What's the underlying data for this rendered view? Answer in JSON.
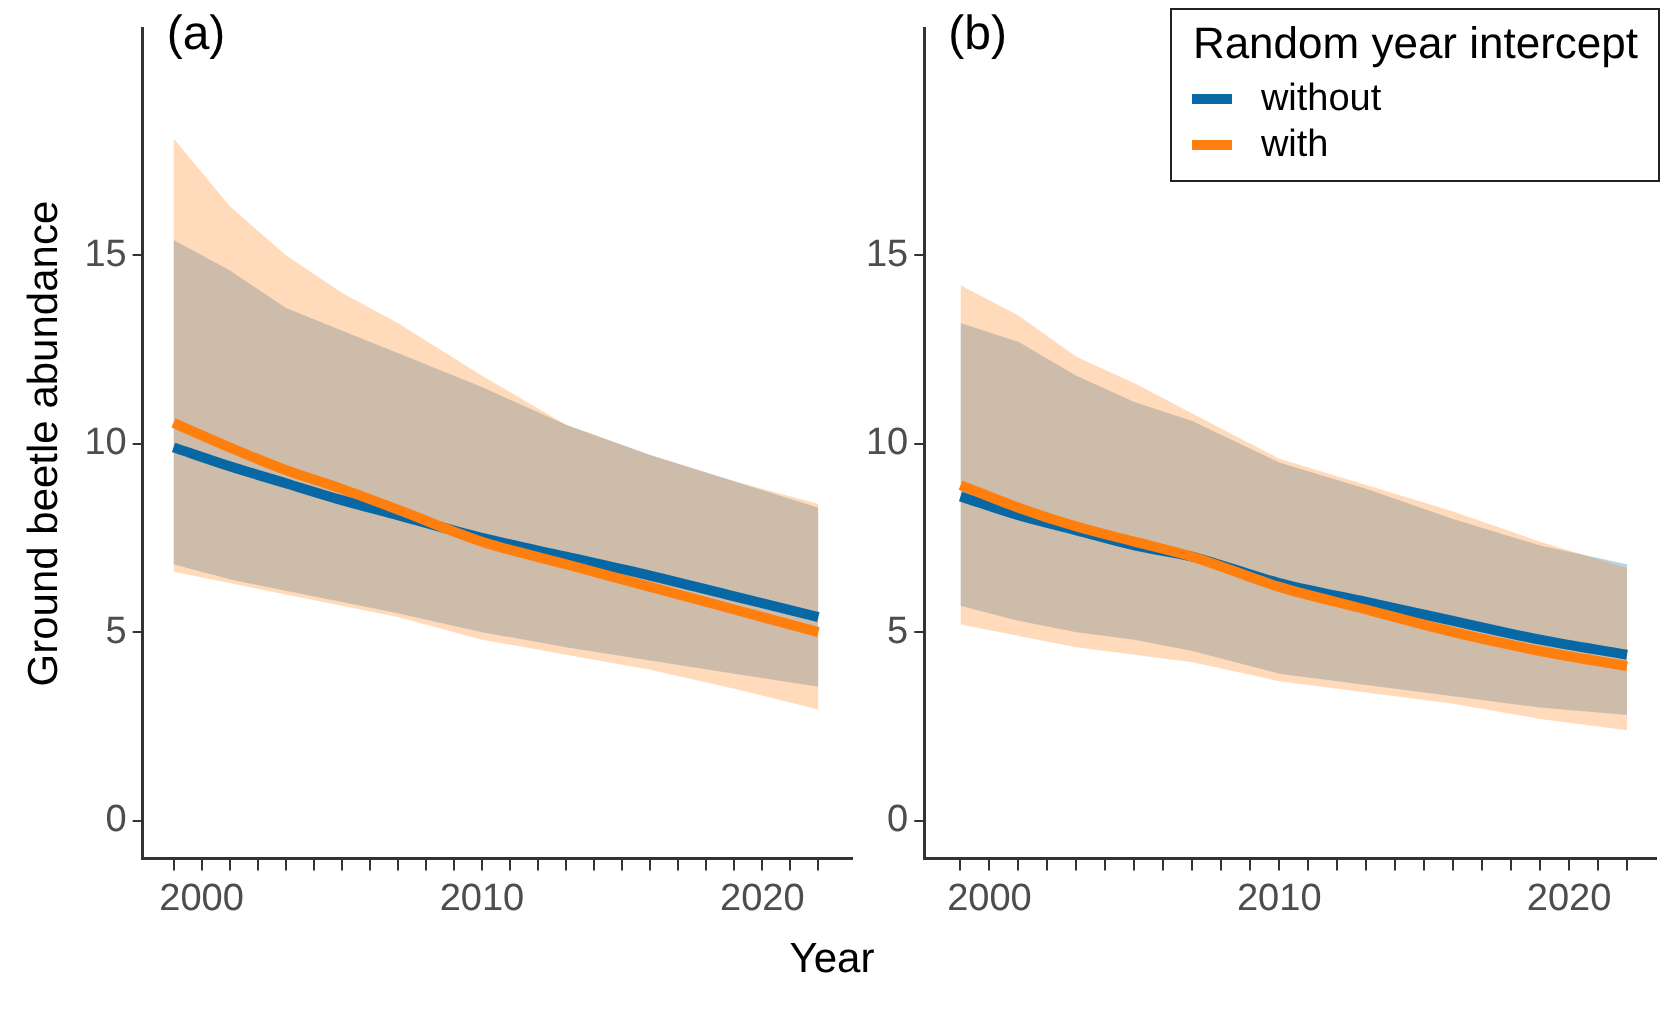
{
  "chart_data": [
    {
      "type": "line",
      "title": "(a)",
      "xlabel": "Year",
      "ylabel": "Ground beetle abundance",
      "xlim": [
        1997.9,
        2023.2
      ],
      "ylim": [
        -1,
        21
      ],
      "yticks": [
        0,
        5,
        10,
        15
      ],
      "xticks": [
        {
          "value": 1999,
          "label": null
        },
        2000,
        {
          "value": 2001,
          "label": null
        },
        {
          "value": 2002,
          "label": null
        },
        {
          "value": 2003,
          "label": null
        },
        {
          "value": 2004,
          "label": null
        },
        {
          "value": 2005,
          "label": null
        },
        {
          "value": 2006,
          "label": null
        },
        {
          "value": 2007,
          "label": null
        },
        {
          "value": 2008,
          "label": null
        },
        {
          "value": 2009,
          "label": null
        },
        2010,
        {
          "value": 2011,
          "label": null
        },
        {
          "value": 2012,
          "label": null
        },
        {
          "value": 2013,
          "label": null
        },
        {
          "value": 2014,
          "label": null
        },
        {
          "value": 2015,
          "label": null
        },
        {
          "value": 2016,
          "label": null
        },
        {
          "value": 2017,
          "label": null
        },
        {
          "value": 2018,
          "label": null
        },
        {
          "value": 2019,
          "label": null
        },
        2020,
        {
          "value": 2021,
          "label": null
        },
        {
          "value": 2022,
          "label": null
        }
      ],
      "x": [
        1999,
        2001,
        2003,
        2005,
        2007,
        2010,
        2013,
        2016,
        2019,
        2022
      ],
      "grid": false,
      "legend": false,
      "marker": "none",
      "line_style": "solid",
      "series": [
        {
          "color": "#ff7f0e",
          "values": [
            10.55,
            9.9,
            9.3,
            8.8,
            8.25,
            7.4,
            6.8,
            6.2,
            5.6,
            5.0
          ],
          "lower": [
            6.6,
            6.3,
            6.0,
            5.7,
            5.4,
            4.8,
            4.4,
            4.0,
            3.5,
            2.95
          ],
          "upper": [
            18.1,
            16.3,
            15.0,
            14.0,
            13.2,
            11.8,
            10.5,
            9.7,
            9.0,
            8.4
          ]
        },
        {
          "color": "#0868a6",
          "values": [
            9.9,
            9.4,
            8.95,
            8.5,
            8.1,
            7.5,
            7.0,
            6.5,
            5.95,
            5.4
          ],
          "lower": [
            6.8,
            6.4,
            6.1,
            5.8,
            5.5,
            5.0,
            4.6,
            4.25,
            3.9,
            3.55
          ],
          "upper": [
            15.4,
            14.6,
            13.6,
            13.0,
            12.4,
            11.5,
            10.5,
            9.7,
            9.0,
            8.3
          ]
        }
      ]
    },
    {
      "type": "line",
      "title": "(b)",
      "legend_title": "Random year intercept",
      "xlim": [
        1997.75,
        2023
      ],
      "ylim": [
        -1,
        21
      ],
      "yticks": [
        0,
        5,
        10,
        15
      ],
      "xticks": [
        {
          "value": 1999,
          "label": null
        },
        2000,
        {
          "value": 2001,
          "label": null
        },
        {
          "value": 2002,
          "label": null
        },
        {
          "value": 2003,
          "label": null
        },
        {
          "value": 2004,
          "label": null
        },
        {
          "value": 2005,
          "label": null
        },
        {
          "value": 2006,
          "label": null
        },
        {
          "value": 2007,
          "label": null
        },
        {
          "value": 2008,
          "label": null
        },
        {
          "value": 2009,
          "label": null
        },
        2010,
        {
          "value": 2011,
          "label": null
        },
        {
          "value": 2012,
          "label": null
        },
        {
          "value": 2013,
          "label": null
        },
        {
          "value": 2014,
          "label": null
        },
        {
          "value": 2015,
          "label": null
        },
        {
          "value": 2016,
          "label": null
        },
        {
          "value": 2017,
          "label": null
        },
        {
          "value": 2018,
          "label": null
        },
        {
          "value": 2019,
          "label": null
        },
        2020,
        {
          "value": 2021,
          "label": null
        },
        {
          "value": 2022,
          "label": null
        }
      ],
      "x": [
        1999,
        2001,
        2003,
        2005,
        2007,
        2010,
        2013,
        2016,
        2019,
        2022
      ],
      "grid": false,
      "legend": "top right",
      "marker": "none",
      "line_style": "solid",
      "series": [
        {
          "name": "with",
          "color": "#ff7f0e",
          "values": [
            8.9,
            8.3,
            7.8,
            7.4,
            7.0,
            6.2,
            5.6,
            5.0,
            4.5,
            4.1
          ],
          "lower": [
            5.2,
            4.9,
            4.6,
            4.4,
            4.2,
            3.7,
            3.4,
            3.1,
            2.7,
            2.4
          ],
          "upper": [
            14.2,
            13.4,
            12.3,
            11.6,
            10.8,
            9.6,
            8.9,
            8.2,
            7.4,
            6.7
          ]
        },
        {
          "name": "without",
          "color": "#0868a6",
          "values": [
            8.6,
            8.1,
            7.7,
            7.3,
            7.0,
            6.3,
            5.8,
            5.3,
            4.8,
            4.4
          ],
          "lower": [
            5.7,
            5.3,
            5.0,
            4.8,
            4.5,
            3.9,
            3.6,
            3.3,
            3.0,
            2.8
          ],
          "upper": [
            13.2,
            12.7,
            11.8,
            11.1,
            10.6,
            9.5,
            8.8,
            8.0,
            7.3,
            6.8
          ]
        }
      ]
    }
  ]
}
